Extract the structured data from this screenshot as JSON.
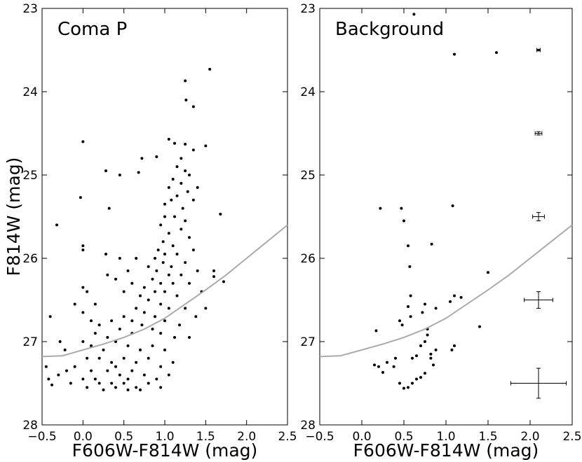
{
  "chart_data": [
    {
      "type": "scatter",
      "title": "Coma P",
      "xlabel": "F606W-F814W (mag)",
      "ylabel": "F814W (mag)",
      "xlim": [
        -0.5,
        2.5
      ],
      "ylim": [
        28,
        23
      ],
      "xticks": [
        {
          "value": -0.5,
          "label": "−0.5"
        },
        {
          "value": 0,
          "label": "0.0"
        },
        {
          "value": 0.5,
          "label": "0.5"
        },
        {
          "value": 1,
          "label": "1.0"
        },
        {
          "value": 1.5,
          "label": "1.5"
        },
        {
          "value": 2,
          "label": "2.0"
        },
        {
          "value": 2.5,
          "label": "2.5"
        }
      ],
      "yticks": [
        23,
        24,
        25,
        26,
        27,
        28
      ],
      "series": [
        {
          "type": "scatter",
          "color": "#000000",
          "x": [
            1.55,
            1.25,
            1.26,
            1.35,
            0.0,
            1.05,
            1.12,
            1.25,
            1.35,
            1.5,
            0.72,
            0.9,
            0.28,
            0.45,
            0.68,
            -0.03,
            0.32,
            1.68,
            -0.32,
            0.0,
            0.0,
            1.6,
            1.6,
            1.72,
            0.28,
            0.45,
            1.2,
            1.15,
            1.25,
            1.1,
            1.2,
            1.3,
            1.05,
            1.28,
            1.15,
            1.0,
            1.08,
            1.22,
            1.35,
            1.4,
            1.0,
            1.12,
            1.25,
            0.95,
            1.05,
            1.2,
            1.3,
            0.98,
            1.1,
            0.92,
            1.0,
            1.15,
            1.35,
            0.88,
            0.98,
            1.08,
            1.25,
            0.8,
            0.9,
            1.05,
            1.2,
            1.4,
            0.85,
            0.95,
            1.1,
            1.3,
            0.75,
            0.88,
            1.0,
            1.15,
            1.45,
            0.7,
            0.8,
            0.95,
            1.05,
            1.25,
            0.65,
            0.75,
            0.88,
            1.0,
            1.18,
            1.38,
            1.5,
            0.6,
            0.72,
            0.85,
            0.95,
            1.12,
            1.3,
            0.0,
            0.1,
            0.25,
            0.4,
            0.55,
            0.7,
            0.85,
            1.0,
            0.05,
            0.2,
            0.35,
            0.5,
            0.65,
            0.8,
            0.95,
            1.1,
            -0.1,
            0.1,
            0.3,
            0.45,
            0.6,
            0.75,
            0.9,
            1.05,
            0.0,
            0.2,
            0.35,
            0.5,
            0.65,
            0.8,
            0.95,
            0.05,
            0.25,
            0.4,
            0.55,
            0.7,
            0.15,
            0.55,
            0.4,
            0.6,
            0.45,
            0.3,
            0.15,
            0.5,
            0.35,
            0.2,
            -0.1,
            0.0,
            0.1,
            -0.45,
            -0.42,
            -0.38,
            -0.3,
            -0.2,
            -0.15,
            -0.4,
            -0.28,
            -0.22,
            0.0,
            0.05,
            0.3,
            0.15,
            0.5,
            0.4,
            0.6,
            0.55,
            0.65
          ],
          "values": [
            23.73,
            23.87,
            24.1,
            24.18,
            24.6,
            24.57,
            24.62,
            24.63,
            24.7,
            24.65,
            24.8,
            24.78,
            24.95,
            25.0,
            24.97,
            25.27,
            25.4,
            25.47,
            25.6,
            25.85,
            25.9,
            26.15,
            26.22,
            26.28,
            25.95,
            26.0,
            24.8,
            24.9,
            24.95,
            25.05,
            25.1,
            25.0,
            25.15,
            25.2,
            25.25,
            25.35,
            25.3,
            25.4,
            25.3,
            25.15,
            25.5,
            25.5,
            25.55,
            25.6,
            25.7,
            25.65,
            25.75,
            25.8,
            25.85,
            25.9,
            25.95,
            25.95,
            25.9,
            26.0,
            26.05,
            26.1,
            26.05,
            26.1,
            26.15,
            26.2,
            26.2,
            26.15,
            26.25,
            26.3,
            26.3,
            26.3,
            26.35,
            26.4,
            26.4,
            26.45,
            26.4,
            26.45,
            26.5,
            26.55,
            26.6,
            26.6,
            26.6,
            26.65,
            26.7,
            26.75,
            26.8,
            26.7,
            26.6,
            26.75,
            26.8,
            26.85,
            26.9,
            26.95,
            26.95,
            27.0,
            27.05,
            27.1,
            27.0,
            27.05,
            27.1,
            27.05,
            27.1,
            27.2,
            27.2,
            27.25,
            27.2,
            27.25,
            27.2,
            27.3,
            27.25,
            27.3,
            27.35,
            27.35,
            27.4,
            27.35,
            27.4,
            27.45,
            27.4,
            27.45,
            27.5,
            27.5,
            27.5,
            27.55,
            27.5,
            27.55,
            27.55,
            27.58,
            27.55,
            27.58,
            27.58,
            27.45,
            27.45,
            27.3,
            26.9,
            26.85,
            26.95,
            26.9,
            26.7,
            26.75,
            26.8,
            26.55,
            26.65,
            26.75,
            27.3,
            27.45,
            27.52,
            27.4,
            27.35,
            27.5,
            26.7,
            27.0,
            27.1,
            26.35,
            26.4,
            26.2,
            26.55,
            26.4,
            26.25,
            26.3,
            26.15,
            26.0
          ]
        },
        {
          "type": "line",
          "color": "#aaaaaa",
          "x": [
            -0.5,
            -0.25,
            0,
            0.25,
            0.5,
            0.75,
            1,
            1.25,
            1.5,
            1.75,
            2,
            2.25,
            2.5
          ],
          "values": [
            27.18,
            27.17,
            27.1,
            27.03,
            26.95,
            26.85,
            26.72,
            26.55,
            26.38,
            26.2,
            26.0,
            25.8,
            25.6
          ]
        }
      ]
    },
    {
      "type": "scatter",
      "title": "Background",
      "xlabel": "F606W-F814W (mag)",
      "xlim": [
        -0.5,
        2.5
      ],
      "ylim": [
        28,
        23
      ],
      "xticks": [
        {
          "value": -0.5,
          "label": "−0.5"
        },
        {
          "value": 0,
          "label": "0.0"
        },
        {
          "value": 0.5,
          "label": "0.5"
        },
        {
          "value": 1,
          "label": "1.0"
        },
        {
          "value": 1.5,
          "label": "1.5"
        },
        {
          "value": 2,
          "label": "2.0"
        },
        {
          "value": 2.5,
          "label": "2.5"
        }
      ],
      "yticks": [
        23,
        24,
        25,
        26,
        27,
        28
      ],
      "series": [
        {
          "type": "scatter",
          "color": "#000000",
          "x": [
            0.62,
            1.1,
            1.6,
            0.22,
            0.47,
            0.5,
            0.55,
            0.83,
            0.57,
            1.08,
            1.5,
            0.58,
            1.1,
            1.18,
            1.05,
            0.75,
            0.88,
            0.72,
            0.55,
            0.58,
            0.45,
            0.48,
            1.4,
            0.78,
            0.17,
            0.78,
            0.75,
            0.7,
            1.1,
            1.07,
            0.4,
            0.3,
            0.38,
            0.6,
            0.65,
            0.82,
            0.85,
            0.15,
            0.25,
            0.2,
            0.45,
            0.5,
            0.55,
            0.65,
            0.7,
            0.75,
            0.6,
            0.82,
            0.88
          ],
          "values": [
            23.07,
            23.55,
            23.53,
            25.4,
            25.4,
            25.55,
            25.85,
            25.83,
            26.1,
            25.37,
            26.17,
            26.45,
            26.45,
            26.47,
            26.52,
            26.55,
            26.6,
            26.65,
            26.58,
            26.7,
            26.75,
            26.8,
            26.82,
            26.85,
            26.87,
            26.92,
            27.0,
            27.05,
            27.05,
            27.1,
            27.2,
            27.25,
            27.3,
            27.2,
            27.17,
            27.15,
            27.28,
            27.28,
            27.37,
            27.3,
            27.5,
            27.56,
            27.55,
            27.45,
            27.43,
            27.38,
            27.5,
            27.2,
            27.1
          ]
        },
        {
          "type": "line",
          "color": "#aaaaaa",
          "x": [
            -0.5,
            -0.25,
            0,
            0.25,
            0.5,
            0.75,
            1,
            1.25,
            1.5,
            1.75,
            2,
            2.25,
            2.5
          ],
          "values": [
            27.18,
            27.17,
            27.1,
            27.03,
            26.95,
            26.85,
            26.72,
            26.55,
            26.38,
            26.2,
            26.0,
            25.8,
            25.6
          ]
        },
        {
          "type": "errorbar",
          "color": "#000000",
          "x": [
            2.1,
            2.1,
            2.1,
            2.1,
            2.1
          ],
          "values": [
            23.5,
            24.5,
            25.5,
            26.5,
            27.5
          ],
          "xerr": [
            0.02,
            0.04,
            0.07,
            0.17,
            0.33
          ],
          "yerr": [
            0.01,
            0.02,
            0.05,
            0.1,
            0.18
          ]
        }
      ]
    }
  ]
}
